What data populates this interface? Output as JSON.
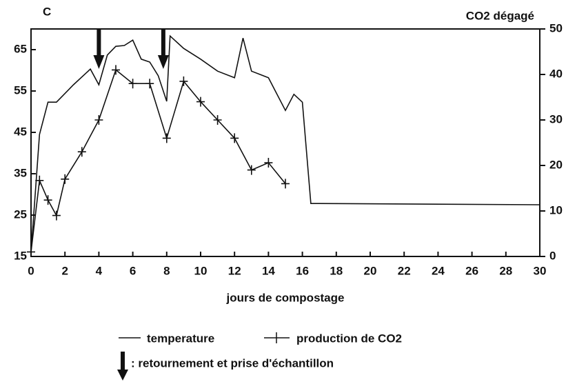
{
  "chart_data": {
    "type": "line",
    "y_label": "C",
    "y2_label": "CO2 dégagé",
    "x_label": "jours de compostage",
    "annotation": ": retournement et prise d'échantillon",
    "xlim": [
      0,
      30
    ],
    "xticks": [
      0,
      2,
      4,
      6,
      8,
      10,
      12,
      14,
      16,
      18,
      20,
      22,
      24,
      26,
      28,
      30
    ],
    "ylim": [
      15,
      70
    ],
    "yticks": [
      15,
      25,
      35,
      45,
      55,
      65
    ],
    "y2lim": [
      0,
      50
    ],
    "y2ticks": [
      0,
      10,
      20,
      30,
      40,
      50
    ],
    "arrows_x": [
      4,
      7.8
    ],
    "series": [
      {
        "name": "temperature",
        "color": "#111111",
        "marker": "none",
        "x": [
          0,
          0.5,
          1,
          1.5,
          2.5,
          3.5,
          4,
          4.5,
          5,
          5.5,
          6,
          6.5,
          7,
          7.5,
          8,
          8.2,
          9,
          10,
          11,
          12,
          12.5,
          13,
          14,
          15,
          15.5,
          16,
          16.5,
          17,
          30
        ],
        "values": [
          16,
          44.5,
          52.3,
          52.3,
          56.5,
          60.3,
          56.5,
          63.7,
          65.8,
          66,
          67.3,
          62.7,
          62,
          58.7,
          52.5,
          68.3,
          65.3,
          62.7,
          59.8,
          58.2,
          67.8,
          59.8,
          58.2,
          50.3,
          54.2,
          52.3,
          27.8,
          27.8,
          27.5
        ]
      },
      {
        "name": "production de CO2",
        "color": "#111111",
        "marker": "plus",
        "axis": "y2",
        "x": [
          0,
          0.5,
          1,
          1.5,
          2,
          3,
          4,
          5,
          6,
          7,
          8,
          9,
          10,
          11,
          12,
          13,
          14,
          15
        ],
        "values": [
          1,
          16.7,
          12.4,
          9,
          17,
          23,
          30,
          41,
          38,
          38,
          26,
          38.5,
          34,
          30,
          26,
          19,
          20.6,
          16
        ]
      }
    ]
  }
}
